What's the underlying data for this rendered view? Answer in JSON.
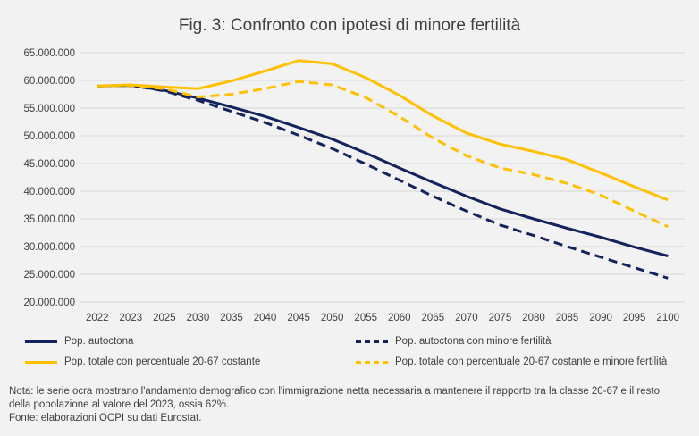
{
  "title": "Fig. 3: Confronto con ipotesi di minore fertilità",
  "chart_data": {
    "type": "line",
    "title": "Fig. 3: Confronto con ipotesi di minore fertilità",
    "xlabel": "",
    "ylabel": "",
    "x": [
      "2022",
      "2023",
      "2025",
      "2030",
      "2035",
      "2040",
      "2045",
      "2050",
      "2055",
      "2060",
      "2065",
      "2070",
      "2075",
      "2080",
      "2085",
      "2090",
      "2095",
      "2100"
    ],
    "ylim": [
      20000000,
      65000000
    ],
    "yticks": [
      20000000,
      25000000,
      30000000,
      35000000,
      40000000,
      45000000,
      50000000,
      55000000,
      60000000,
      65000000
    ],
    "ytick_labels": [
      "20.000.000",
      "25.000.000",
      "30.000.000",
      "35.000.000",
      "40.000.000",
      "45.000.000",
      "50.000.000",
      "55.000.000",
      "60.000.000",
      "65.000.000"
    ],
    "grid": true,
    "legend_position": "bottom",
    "series": [
      {
        "name": "Pop. autoctona",
        "color": "#13235b",
        "style": "solid",
        "values": [
          59000000,
          59100000,
          58200000,
          56800000,
          55200000,
          53500000,
          51500000,
          49400000,
          46900000,
          44200000,
          41600000,
          39100000,
          36800000,
          35000000,
          33300000,
          31700000,
          29900000,
          28300000
        ]
      },
      {
        "name": "Pop. autoctona con minore fertilità",
        "color": "#13235b",
        "style": "dashed",
        "values": [
          59000000,
          59100000,
          58100000,
          56400000,
          54400000,
          52400000,
          50100000,
          47700000,
          44900000,
          42000000,
          39100000,
          36400000,
          33900000,
          32000000,
          30000000,
          28100000,
          26200000,
          24300000
        ]
      },
      {
        "name": "Pop. totale con percentuale 20-67 costante",
        "color": "#ffc000",
        "style": "solid",
        "values": [
          59000000,
          59200000,
          58800000,
          58500000,
          59900000,
          61700000,
          63600000,
          63000000,
          60500000,
          57300000,
          53600000,
          50500000,
          48500000,
          47200000,
          45700000,
          43300000,
          40800000,
          38400000
        ]
      },
      {
        "name": "Pop. totale con percentuale 20-67 costante e minore fertilità",
        "color": "#ffc000",
        "style": "dashed",
        "values": [
          59000000,
          59100000,
          58500000,
          57000000,
          57500000,
          58500000,
          59800000,
          59200000,
          56900000,
          53500000,
          49600000,
          46400000,
          44200000,
          43000000,
          41400000,
          39300000,
          36400000,
          33600000
        ]
      }
    ]
  },
  "note": {
    "line1": "Nota: le serie ocra mostrano l'andamento demografico con l'immigrazione netta necessaria a mantenere il rapporto tra la classe 20-67 e il resto",
    "line2": "della popolazione al valore del 2023, ossia 62%.",
    "source": "Fonte: elaborazioni OCPI su dati Eurostat."
  }
}
